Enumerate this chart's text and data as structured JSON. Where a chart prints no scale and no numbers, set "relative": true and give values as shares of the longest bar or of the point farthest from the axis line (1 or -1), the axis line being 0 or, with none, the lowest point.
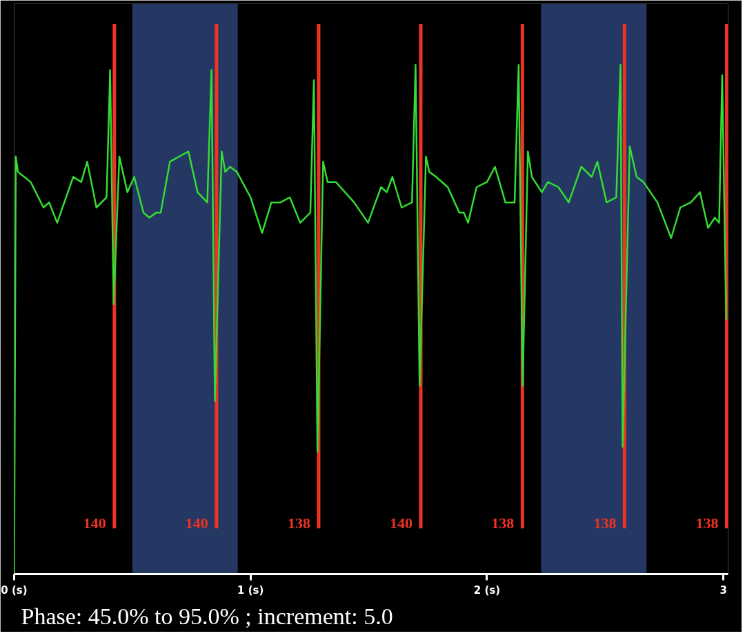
{
  "chart_data": {
    "type": "line",
    "relative": true,
    "x": [
      0.0,
      0.007,
      0.016,
      0.07,
      0.124,
      0.148,
      0.182,
      0.25,
      0.284,
      0.309,
      0.348,
      0.391,
      0.406,
      0.421,
      0.445,
      0.479,
      0.508,
      0.547,
      0.572,
      0.601,
      0.62,
      0.659,
      0.698,
      0.737,
      0.776,
      0.817,
      0.835,
      0.849,
      0.878,
      0.893,
      0.913,
      0.942,
      1.0,
      1.049,
      1.088,
      1.127,
      1.166,
      1.21,
      1.253,
      1.268,
      1.283,
      1.307,
      1.326,
      1.361,
      1.438,
      1.497,
      1.552,
      1.576,
      1.6,
      1.639,
      1.683,
      1.698,
      1.715,
      1.742,
      1.756,
      1.785,
      1.834,
      1.883,
      1.902,
      1.92,
      1.956,
      2.0,
      2.034,
      2.078,
      2.117,
      2.134,
      2.151,
      2.173,
      2.19,
      2.232,
      2.258,
      2.302,
      2.346,
      2.399,
      2.443,
      2.467,
      2.506,
      2.547,
      2.565,
      2.574,
      2.604,
      2.633,
      2.662,
      2.721,
      2.779,
      2.818,
      2.862,
      2.901,
      2.935,
      2.964,
      2.982,
      2.995,
      3.012
    ],
    "series": [
      {
        "color": "#33dd33",
        "values": [
          0.0,
          0.82,
          0.79,
          0.77,
          0.72,
          0.73,
          0.69,
          0.78,
          0.77,
          0.81,
          0.72,
          0.74,
          0.99,
          0.53,
          0.82,
          0.75,
          0.78,
          0.71,
          0.7,
          0.71,
          0.71,
          0.81,
          0.82,
          0.83,
          0.75,
          0.73,
          0.99,
          0.34,
          0.83,
          0.79,
          0.8,
          0.79,
          0.74,
          0.67,
          0.73,
          0.73,
          0.74,
          0.69,
          0.71,
          0.97,
          0.24,
          0.81,
          0.77,
          0.77,
          0.73,
          0.69,
          0.76,
          0.75,
          0.78,
          0.72,
          0.73,
          1.0,
          0.37,
          0.82,
          0.79,
          0.78,
          0.76,
          0.71,
          0.71,
          0.69,
          0.76,
          0.77,
          0.8,
          0.73,
          0.73,
          1.0,
          0.37,
          0.83,
          0.78,
          0.75,
          0.77,
          0.76,
          0.73,
          0.8,
          0.78,
          0.81,
          0.73,
          0.74,
          1.0,
          0.25,
          0.84,
          0.78,
          0.77,
          0.73,
          0.66,
          0.72,
          0.73,
          0.75,
          0.68,
          0.7,
          0.69,
          0.98,
          0.5
        ]
      }
    ],
    "xlim": [
      0,
      3.02
    ],
    "xticks": [
      {
        "value": 0,
        "label": "0 (s)"
      },
      {
        "value": 1,
        "label": "1 (s)"
      },
      {
        "value": 2,
        "label": "2 (s)"
      },
      {
        "value": 3,
        "label": "3"
      }
    ],
    "grid": false,
    "ref_lines": [
      {
        "axis": "x",
        "value": 0.424,
        "color": "#ee3322"
      },
      {
        "axis": "x",
        "value": 0.856,
        "color": "#ee3322"
      },
      {
        "axis": "x",
        "value": 1.288,
        "color": "#ee3322"
      },
      {
        "axis": "x",
        "value": 1.72,
        "color": "#ee3322"
      },
      {
        "axis": "x",
        "value": 2.15,
        "color": "#ee3322"
      },
      {
        "axis": "x",
        "value": 2.582,
        "color": "#ee3322"
      },
      {
        "axis": "x",
        "value": 3.014,
        "color": "#ee3322"
      }
    ],
    "bands": [
      {
        "axis": "x",
        "from": 0.5,
        "to": 0.946,
        "color": "#2a4274"
      },
      {
        "axis": "x",
        "from": 2.229,
        "to": 2.675,
        "color": "#2a4274"
      }
    ],
    "annotations": [
      {
        "text": "140",
        "x": 0.424
      },
      {
        "text": "140",
        "x": 0.856
      },
      {
        "text": "138",
        "x": 1.288
      },
      {
        "text": "140",
        "x": 1.72
      },
      {
        "text": "138",
        "x": 2.15
      },
      {
        "text": "138",
        "x": 2.582
      },
      {
        "text": "138",
        "x": 3.014
      },
      "Phase: 45.0% to 95.0% ; increment: 5.0"
    ]
  }
}
